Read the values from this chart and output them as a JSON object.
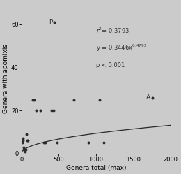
{
  "scatter_points": [
    [
      5,
      6
    ],
    [
      8,
      6
    ],
    [
      12,
      5
    ],
    [
      18,
      6
    ],
    [
      22,
      7
    ],
    [
      30,
      3
    ],
    [
      35,
      2
    ],
    [
      45,
      1
    ],
    [
      55,
      2
    ],
    [
      65,
      9
    ],
    [
      80,
      6
    ],
    [
      90,
      6
    ],
    [
      150,
      25
    ],
    [
      170,
      25
    ],
    [
      200,
      20
    ],
    [
      250,
      20
    ],
    [
      300,
      5
    ],
    [
      320,
      5
    ],
    [
      400,
      20
    ],
    [
      430,
      20
    ],
    [
      480,
      5
    ],
    [
      700,
      25
    ],
    [
      900,
      5
    ],
    [
      1050,
      25
    ],
    [
      1100,
      5
    ]
  ],
  "outlier_P": [
    440,
    61
  ],
  "outlier_A": [
    1750,
    26
  ],
  "coef_a": 0.3446,
  "coef_b": 0.4792,
  "xlabel": "Genera total (max)",
  "ylabel": "Genera with apomixis",
  "xlim": [
    0,
    2000
  ],
  "ylim": [
    0,
    70
  ],
  "xticks": [
    0,
    500,
    1000,
    1500,
    2000
  ],
  "yticks": [
    0,
    20,
    40,
    60
  ],
  "bg_color": "#cbcbcb",
  "dot_color": "#2a2a2a",
  "line_color": "#2a2a2a",
  "ann_r2": "r² = 0.3793",
  "ann_eq": "y = 0.3446x",
  "ann_exp": "0.4792",
  "ann_p": "p < 0.001",
  "ann_x": 1000,
  "ann_y_r2": 57,
  "ann_y_eq": 49,
  "ann_y_p": 41
}
